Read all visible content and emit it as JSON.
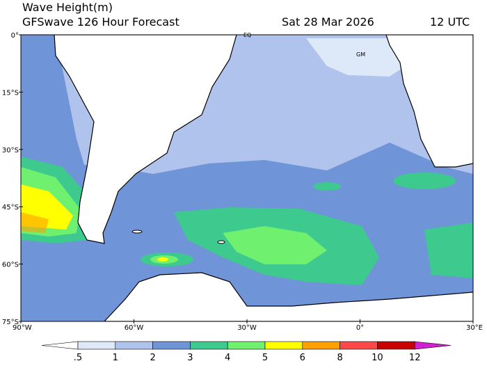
{
  "header": {
    "title": "Wave Height(m)",
    "subtitle": "GFSwave 126 Hour Forecast",
    "date": "Sat 28 Mar 2026",
    "time": "12 UTC"
  },
  "map": {
    "lat_labels": [
      "0°",
      "15°S",
      "30°S",
      "45°S",
      "60°S",
      "75°S"
    ],
    "lon_labels": [
      "90°W",
      "60°W",
      "30°W",
      "0°",
      "30°E"
    ],
    "annotations": [
      "EQ",
      "GM"
    ]
  },
  "colorbar": {
    "labels": [
      ".5",
      "1",
      "2",
      "3",
      "4",
      "5",
      "6",
      "8",
      "10",
      "12"
    ],
    "colors": [
      "#ffffff",
      "#dde8f8",
      "#afc3ec",
      "#6f94d8",
      "#3ec98f",
      "#6ff06f",
      "#ffff00",
      "#ffa000",
      "#ff4848",
      "#c80000",
      "#d020d0"
    ]
  }
}
